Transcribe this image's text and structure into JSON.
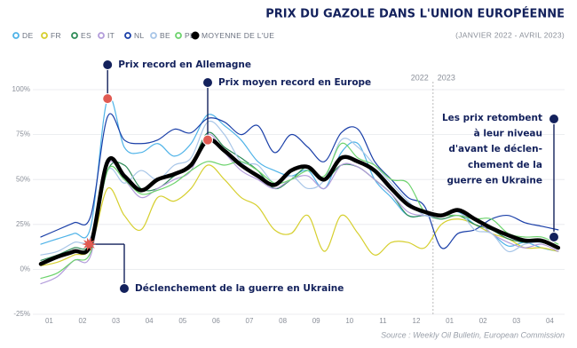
{
  "chart_data": {
    "type": "line",
    "title": "PRIX DU GAZOLE DANS L'UNION EUROPÉENNE",
    "subtitle": "(JANVIER 2022 - AVRIL 2023)",
    "source": "Source : Weekly Oil Bulletin, European Commission",
    "categories": [
      "01",
      null,
      "02",
      null,
      "03",
      null,
      "04",
      null,
      "05",
      null,
      "06",
      null,
      "07",
      null,
      "08",
      null,
      "09",
      null,
      "10",
      null,
      "11",
      null,
      "12",
      null,
      "01",
      null,
      "02",
      null,
      "03",
      null,
      "04",
      null
    ],
    "ylim": [
      -25,
      100
    ],
    "yticks": [
      {
        "value": -25,
        "label": "-25%"
      },
      {
        "value": 0,
        "label": "0%"
      },
      {
        "value": 25,
        "label": "25%"
      },
      {
        "value": 50,
        "label": "50%"
      },
      {
        "value": 75,
        "label": "75%"
      },
      {
        "value": 100,
        "label": "100%"
      }
    ],
    "grid": true,
    "year_labels": [
      "2022",
      "2023"
    ],
    "series": [
      {
        "name": "DE",
        "color": "#4fb3e8",
        "values": [
          14,
          17,
          20,
          24,
          95,
          68,
          65,
          70,
          63,
          70,
          86,
          80,
          72,
          60,
          55,
          52,
          55,
          45,
          65,
          70,
          50,
          40,
          30,
          30,
          30,
          32,
          25,
          20,
          13,
          15,
          12,
          10
        ]
      },
      {
        "name": "FR",
        "color": "#d6cf2e",
        "values": [
          2,
          4,
          8,
          12,
          45,
          30,
          22,
          40,
          38,
          45,
          58,
          50,
          40,
          35,
          22,
          20,
          30,
          10,
          30,
          20,
          8,
          15,
          15,
          12,
          25,
          28,
          25,
          20,
          17,
          12,
          12,
          10
        ]
      },
      {
        "name": "ES",
        "color": "#2e8b57",
        "values": [
          5,
          8,
          12,
          15,
          55,
          58,
          45,
          45,
          52,
          58,
          76,
          68,
          62,
          55,
          45,
          50,
          57,
          50,
          58,
          57,
          50,
          42,
          30,
          30,
          28,
          30,
          25,
          22,
          17,
          15,
          15,
          12
        ]
      },
      {
        "name": "IT",
        "color": "#b39ddb",
        "values": [
          -8,
          -4,
          5,
          8,
          58,
          50,
          40,
          45,
          50,
          55,
          75,
          65,
          55,
          50,
          45,
          50,
          52,
          45,
          58,
          57,
          50,
          42,
          32,
          30,
          30,
          30,
          28,
          20,
          15,
          12,
          14,
          10
        ]
      },
      {
        "name": "NL",
        "color": "#1a3fa8",
        "values": [
          18,
          22,
          26,
          30,
          85,
          72,
          70,
          72,
          78,
          76,
          84,
          82,
          75,
          80,
          65,
          75,
          68,
          60,
          76,
          78,
          60,
          50,
          40,
          35,
          12,
          20,
          22,
          28,
          30,
          26,
          24,
          22
        ]
      },
      {
        "name": "BE",
        "color": "#a8c6e8",
        "values": [
          8,
          10,
          15,
          18,
          55,
          48,
          55,
          50,
          58,
          62,
          82,
          75,
          60,
          58,
          48,
          52,
          45,
          50,
          72,
          68,
          58,
          48,
          38,
          30,
          30,
          33,
          22,
          20,
          10,
          14,
          15,
          12
        ]
      },
      {
        "name": "PL",
        "color": "#6dd36d",
        "values": [
          -5,
          -2,
          5,
          10,
          55,
          50,
          42,
          44,
          48,
          55,
          60,
          58,
          60,
          55,
          48,
          50,
          55,
          52,
          70,
          62,
          58,
          50,
          48,
          32,
          30,
          30,
          28,
          28,
          20,
          18,
          18,
          14
        ]
      },
      {
        "name": "MOYENNE DE L'UE",
        "color": "#000000",
        "values": [
          3,
          7,
          10,
          14,
          60,
          52,
          44,
          50,
          53,
          58,
          72,
          66,
          58,
          52,
          47,
          55,
          57,
          50,
          62,
          60,
          55,
          45,
          36,
          32,
          30,
          33,
          28,
          23,
          19,
          16,
          16,
          12
        ]
      }
    ],
    "annotations": [
      {
        "text": "Prix record en Allemagne"
      },
      {
        "text": "Prix moyen record en Europe"
      },
      {
        "text": "Déclenchement de la guerre en Ukraine"
      },
      {
        "lines": [
          "Les prix retombent",
          "à leur niveau",
          "d'avant le déclen-",
          "chement de la",
          "guerre en Ukraine"
        ]
      }
    ]
  }
}
